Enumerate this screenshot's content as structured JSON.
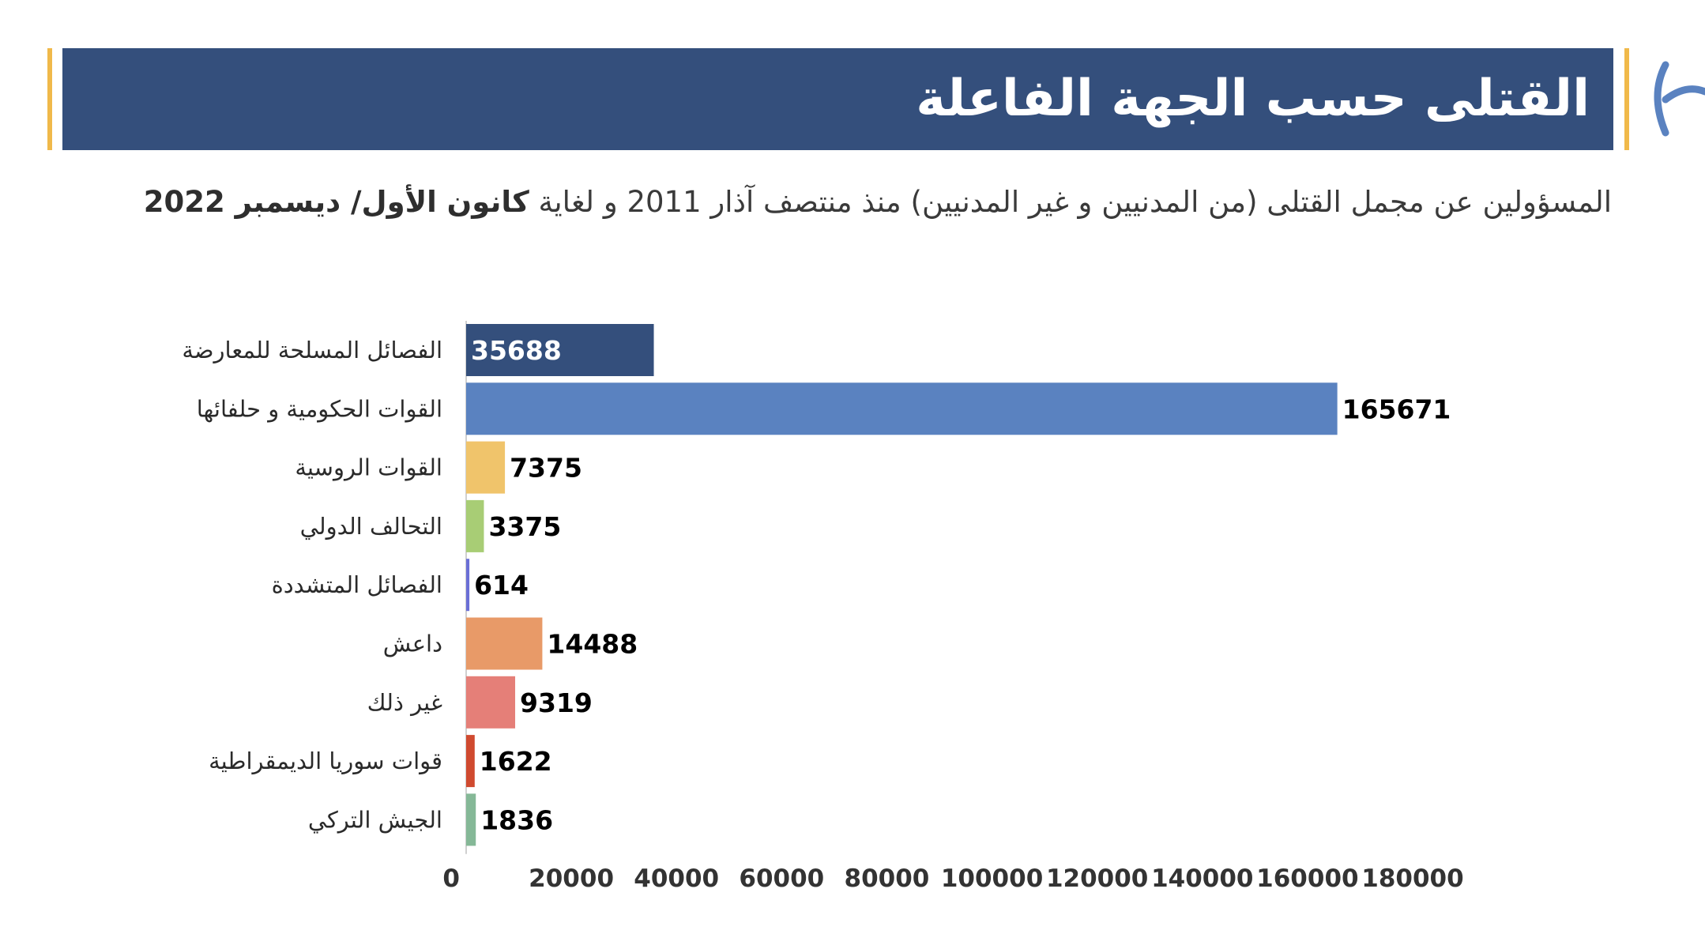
{
  "header": {
    "title": "القتلى حسب الجهة الفاعلة",
    "subtitle_part1": "المسؤولين عن مجمل القتلى (من المدنيين و غير المدنيين) منذ منتصف آذار 2011 و لغاية",
    "subtitle_bold": "كانون الأول/ ديسمبر 2022"
  },
  "colors": {
    "banner": "#344f7c",
    "accent": "#f0b94a",
    "logo": "#5a82c0"
  },
  "chart_data": {
    "type": "bar",
    "orientation": "horizontal",
    "categories": [
      "الفصائل المسلحة للمعارضة",
      "القوات الحكومية و حلفائها",
      "القوات الروسية",
      "التحالف الدولي",
      "الفصائل المتشددة",
      "داعش",
      "غير ذلك",
      "قوات سوريا الديمقراطية",
      "الجيش التركي"
    ],
    "values": [
      35688,
      165671,
      7375,
      3375,
      614,
      14488,
      9319,
      1622,
      1836
    ],
    "bar_colors": [
      "#344f7c",
      "#5a82c0",
      "#f0c46b",
      "#a8cd75",
      "#6a6fd6",
      "#e89a68",
      "#e57f78",
      "#d04a2f",
      "#85b897"
    ],
    "value_label_colors": [
      "#ffffff",
      "#000000",
      "#000000",
      "#000000",
      "#000000",
      "#000000",
      "#000000",
      "#000000",
      "#000000"
    ],
    "xlim": [
      0,
      180000
    ],
    "xticks": [
      "0",
      "20000",
      "40000",
      "60000",
      "80000",
      "100000",
      "120000",
      "140000",
      "160000",
      "180000"
    ],
    "grid": false,
    "legend": "none"
  }
}
